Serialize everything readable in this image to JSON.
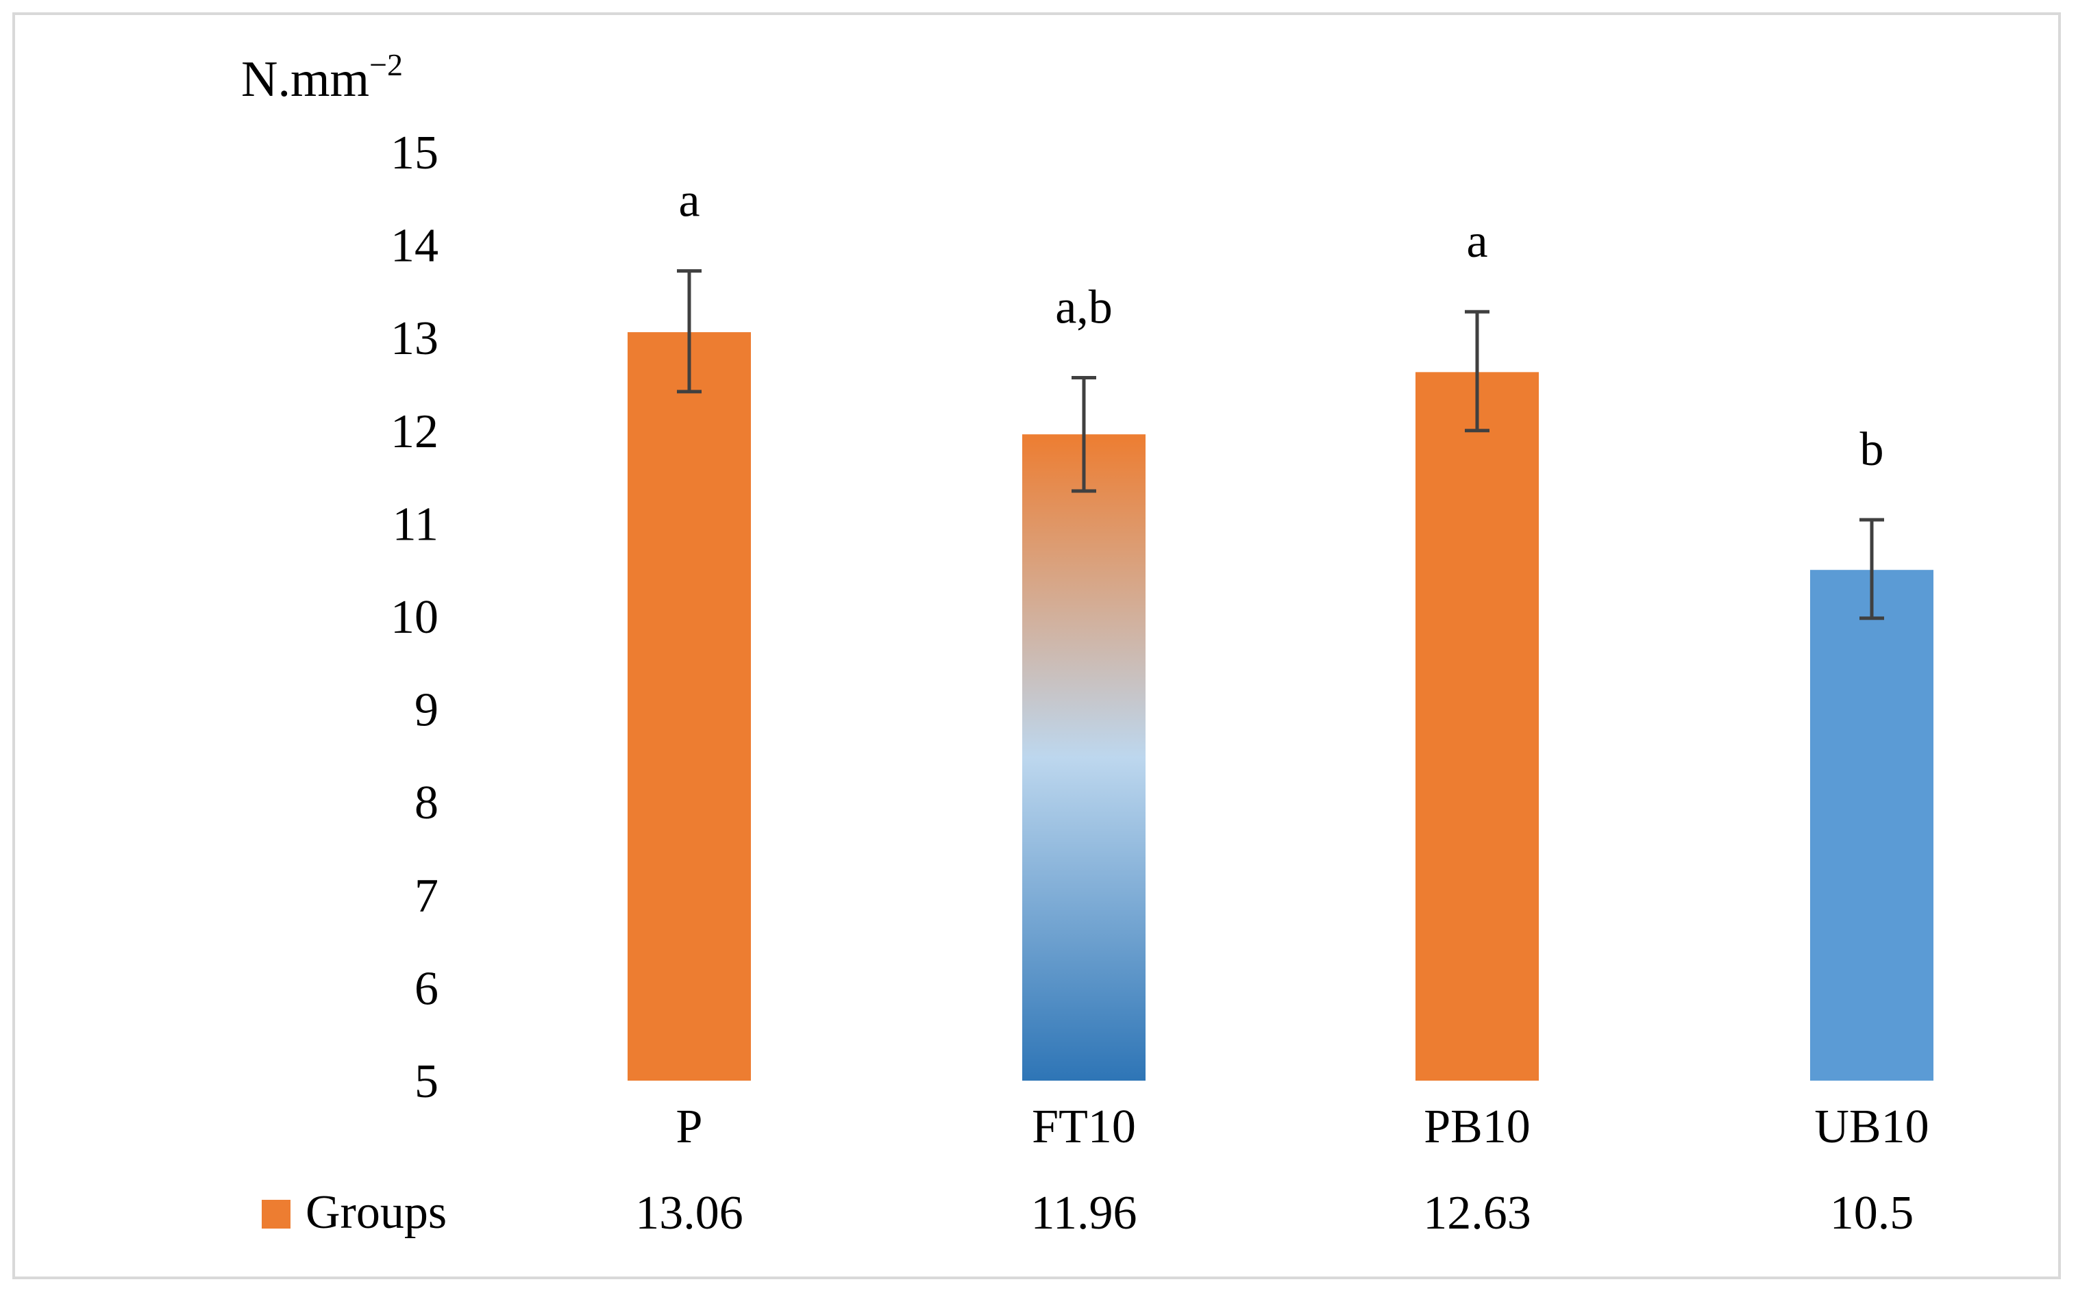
{
  "chart_data": {
    "type": "bar",
    "ylabel": "N.mm",
    "ylabel_exponent": "−2",
    "ylim": [
      5,
      15
    ],
    "yticks": [
      "5",
      "6",
      "7",
      "8",
      "9",
      "10",
      "11",
      "12",
      "13",
      "14",
      "15"
    ],
    "categories": [
      "P",
      "FT10",
      "PB10",
      "UB10"
    ],
    "series": [
      {
        "name": "Groups",
        "values": [
          13.06,
          11.96,
          12.63,
          10.5
        ],
        "value_labels": [
          "13.06",
          "11.96",
          "12.63",
          "10.5"
        ],
        "error_low": [
          12.42,
          11.35,
          12.0,
          9.98
        ],
        "error_high": [
          13.72,
          12.57,
          13.28,
          11.04
        ],
        "significance": [
          "a",
          "a,b",
          "a",
          "b"
        ],
        "fills": [
          "orange",
          "gradient",
          "orange",
          "blue"
        ]
      }
    ],
    "data_table": true,
    "legend_label": "Groups"
  },
  "colors": {
    "orange": "#ed7d31",
    "blue": "#5b9bd5",
    "gradient_top": "#ed7d31",
    "gradient_mid": "#bdd7ee",
    "gradient_bottom": "#2e75b6",
    "error_bar": "#404040",
    "legend_swatch": "#ed7d31"
  }
}
